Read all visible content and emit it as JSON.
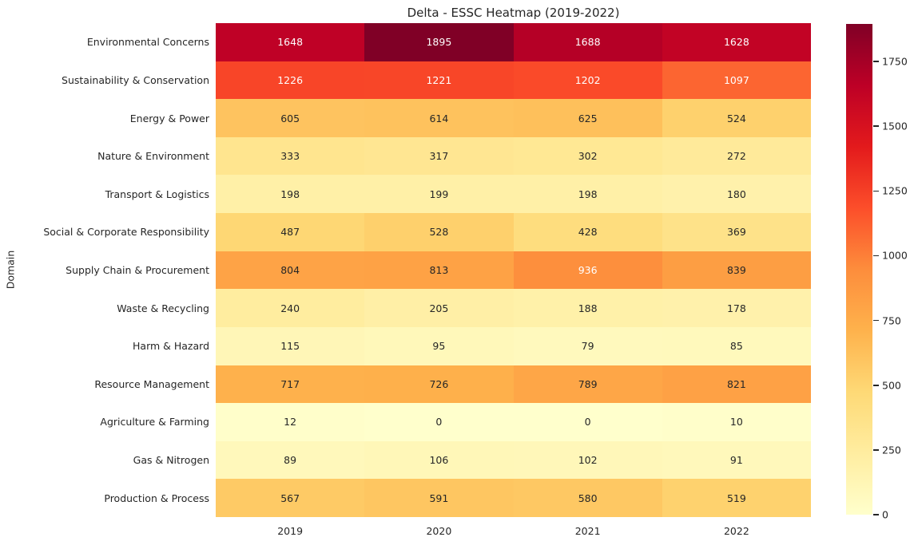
{
  "chart_data": {
    "type": "heatmap",
    "title": "Delta - ESSC Heatmap (2019-2022)",
    "ylabel": "Domain",
    "xlabel": "",
    "rows": [
      "Environmental Concerns",
      "Sustainability & Conservation",
      "Energy & Power",
      "Nature & Environment",
      "Transport & Logistics",
      "Social & Corporate Responsibility",
      "Supply Chain & Procurement",
      "Waste & Recycling",
      "Harm & Hazard",
      "Resource Management",
      "Agriculture & Farming",
      "Gas & Nitrogen",
      "Production & Process"
    ],
    "columns": [
      "2019",
      "2020",
      "2021",
      "2022"
    ],
    "values": [
      [
        1648,
        1895,
        1688,
        1628
      ],
      [
        1226,
        1221,
        1202,
        1097
      ],
      [
        605,
        614,
        625,
        524
      ],
      [
        333,
        317,
        302,
        272
      ],
      [
        198,
        199,
        198,
        180
      ],
      [
        487,
        528,
        428,
        369
      ],
      [
        804,
        813,
        936,
        839
      ],
      [
        240,
        205,
        188,
        178
      ],
      [
        115,
        95,
        79,
        85
      ],
      [
        717,
        726,
        789,
        821
      ],
      [
        12,
        0,
        0,
        10
      ],
      [
        89,
        106,
        102,
        91
      ],
      [
        567,
        591,
        580,
        519
      ]
    ],
    "vmin": 0,
    "vmax": 1895,
    "colormap": "YlOrRd",
    "colormap_stops": [
      "#ffffcc",
      "#ffeda0",
      "#fed976",
      "#feb24c",
      "#fd8d3c",
      "#fc4e2a",
      "#e31a1c",
      "#bd0026",
      "#800026"
    ],
    "colorbar_ticks": [
      0,
      250,
      500,
      750,
      1000,
      1250,
      1500,
      1750
    ],
    "colorbar_position": "right",
    "grid": false,
    "annotation_color_dark": "#262626",
    "annotation_color_light": "#ffffff",
    "background_color": "#ffffff"
  }
}
